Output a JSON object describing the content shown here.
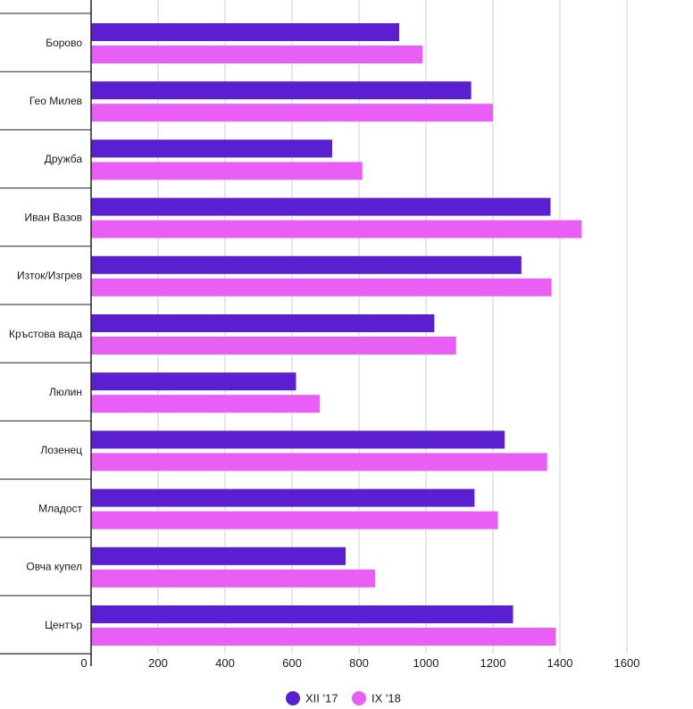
{
  "chart_data": {
    "type": "bar",
    "orientation": "horizontal",
    "categories": [
      "Борово",
      "Гео Милев",
      "Дружба",
      "Иван Вазов",
      "Изток/Изгрев",
      "Кръстова вада",
      "Люлин",
      "Лозенец",
      "Младост",
      "Овча купел",
      "Център"
    ],
    "series": [
      {
        "name": "XII '17",
        "color": "#5a1fd1",
        "values": [
          920,
          1135,
          720,
          1372,
          1285,
          1025,
          612,
          1235,
          1145,
          760,
          1260
        ]
      },
      {
        "name": "IX '18",
        "color": "#e95ef4",
        "values": [
          990,
          1200,
          810,
          1465,
          1375,
          1090,
          683,
          1362,
          1215,
          848,
          1388
        ]
      }
    ],
    "xlim": [
      0,
      1600
    ],
    "xticks": [
      0,
      200,
      400,
      600,
      800,
      1000,
      1200,
      1400,
      1600
    ],
    "grid": true,
    "legend_position": "bottom-center"
  }
}
